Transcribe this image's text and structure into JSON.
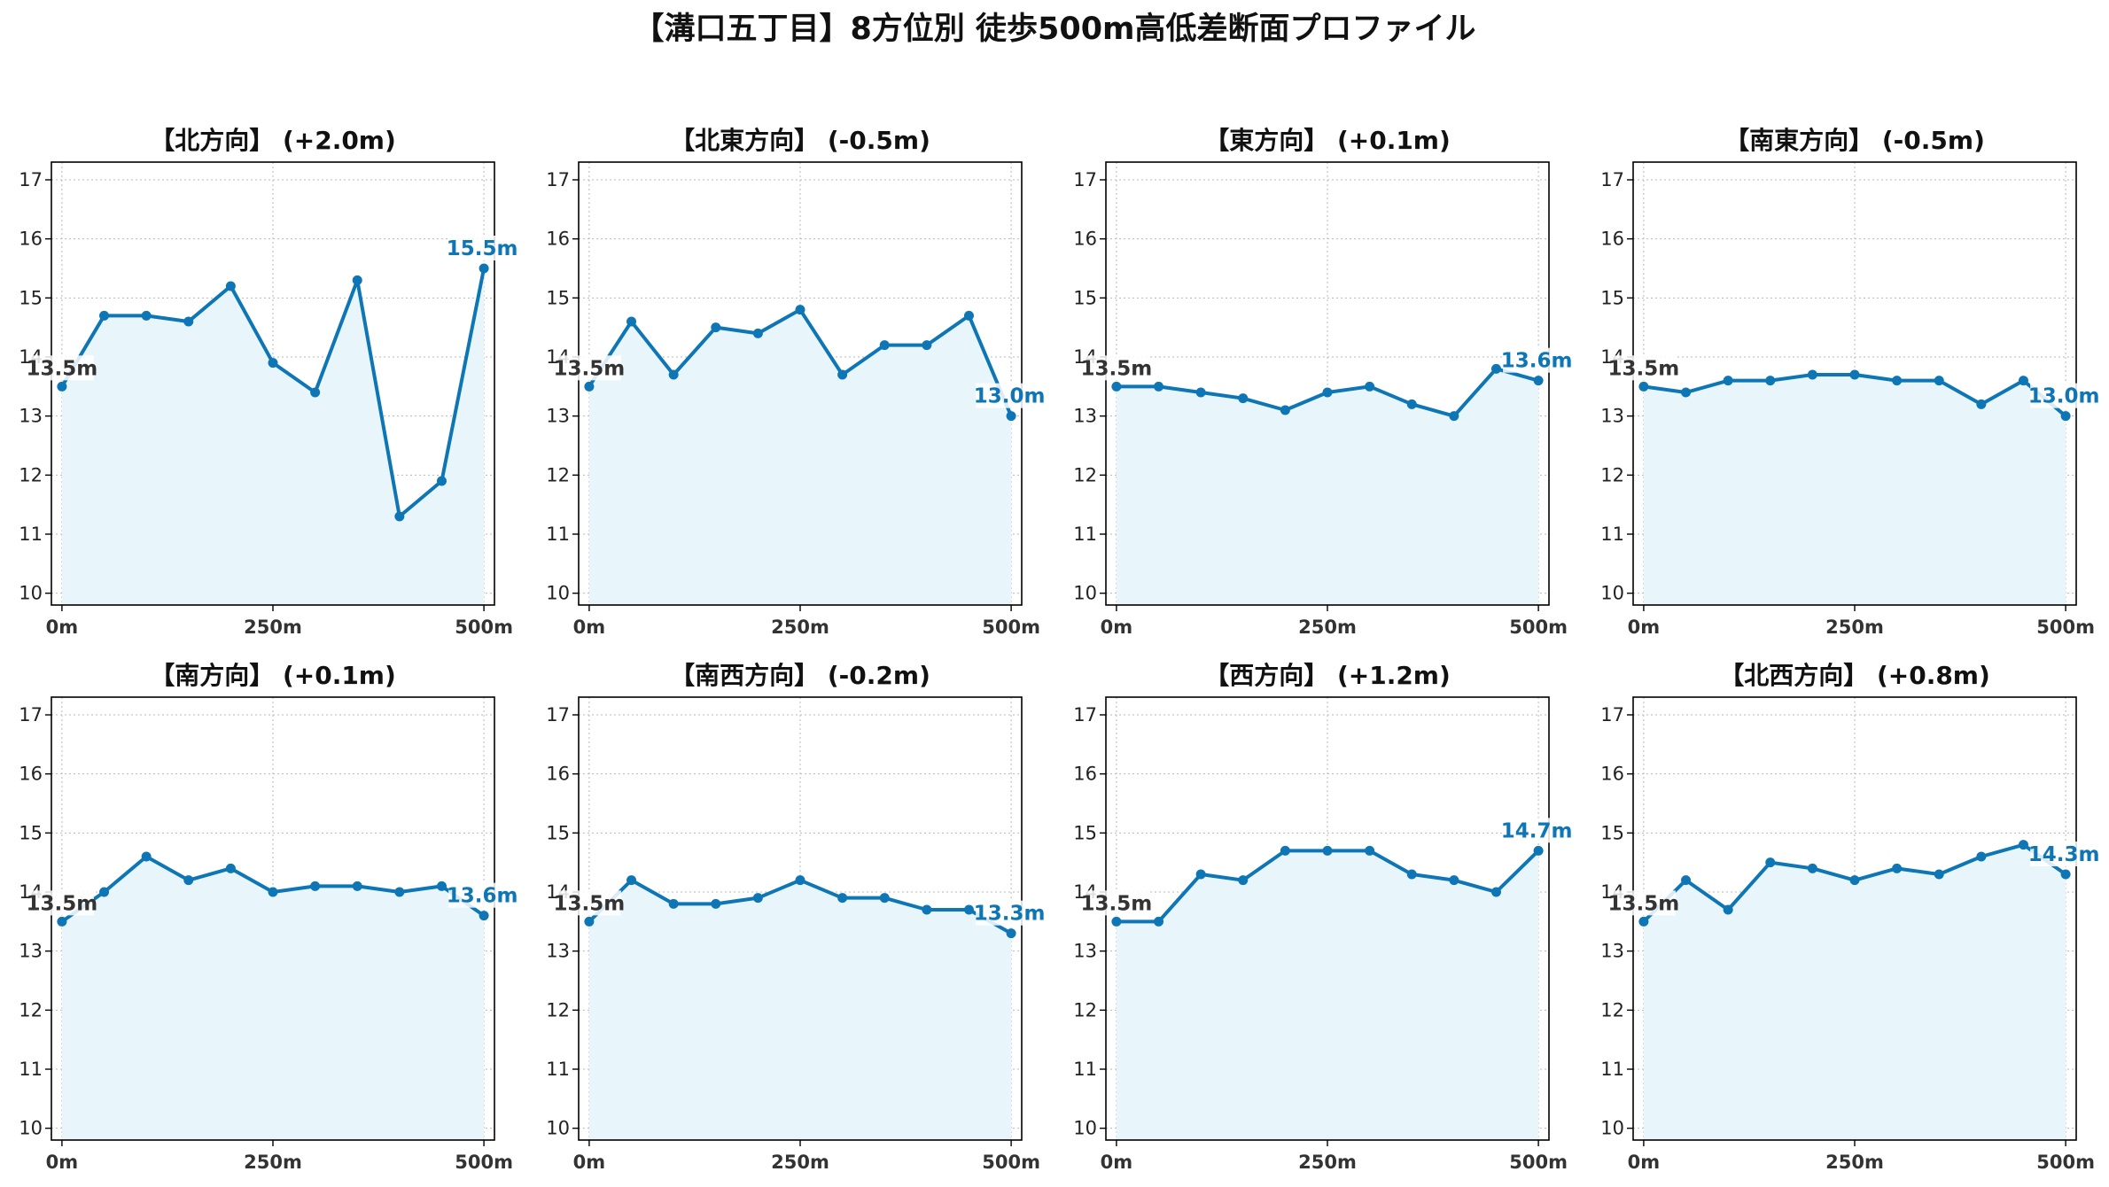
{
  "title": "【溝口五丁目】8方位別 徒歩500m高低差断面プロファイル",
  "colors": {
    "line": "#0e76b5",
    "fill": "#e8f6fc",
    "grid": "#b8b8b8",
    "start_label": "#333333",
    "end_label": "#0e76b5"
  },
  "chart_data": [
    {
      "type": "area",
      "title": "【北方向】 (+2.0m)",
      "x": [
        0,
        50,
        100,
        150,
        200,
        250,
        300,
        350,
        400,
        450,
        500
      ],
      "values": [
        13.5,
        14.7,
        14.7,
        14.6,
        15.2,
        13.9,
        13.4,
        15.3,
        11.3,
        11.9,
        15.5
      ],
      "start_label": "13.5m",
      "end_label": "15.5m",
      "xticks": [
        "0m",
        "250m",
        "500m"
      ],
      "yticks": [
        "10",
        "11",
        "12",
        "13",
        "14",
        "15",
        "16",
        "17"
      ],
      "ylim": [
        9.8,
        17.3
      ],
      "grid": true
    },
    {
      "type": "area",
      "title": "【北東方向】 (-0.5m)",
      "x": [
        0,
        50,
        100,
        150,
        200,
        250,
        300,
        350,
        400,
        450,
        500
      ],
      "values": [
        13.5,
        14.6,
        13.7,
        14.5,
        14.4,
        14.8,
        13.7,
        14.2,
        14.2,
        14.7,
        13.0
      ],
      "start_label": "13.5m",
      "end_label": "13.0m",
      "xticks": [
        "0m",
        "250m",
        "500m"
      ],
      "yticks": [
        "10",
        "11",
        "12",
        "13",
        "14",
        "15",
        "16",
        "17"
      ],
      "ylim": [
        9.8,
        17.3
      ],
      "grid": true
    },
    {
      "type": "area",
      "title": "【東方向】 (+0.1m)",
      "x": [
        0,
        50,
        100,
        150,
        200,
        250,
        300,
        350,
        400,
        450,
        500
      ],
      "values": [
        13.5,
        13.5,
        13.4,
        13.3,
        13.1,
        13.4,
        13.5,
        13.2,
        13.0,
        13.8,
        13.6
      ],
      "start_label": "13.5m",
      "end_label": "13.6m",
      "xticks": [
        "0m",
        "250m",
        "500m"
      ],
      "yticks": [
        "10",
        "11",
        "12",
        "13",
        "14",
        "15",
        "16",
        "17"
      ],
      "ylim": [
        9.8,
        17.3
      ],
      "grid": true
    },
    {
      "type": "area",
      "title": "【南東方向】 (-0.5m)",
      "x": [
        0,
        50,
        100,
        150,
        200,
        250,
        300,
        350,
        400,
        450,
        500
      ],
      "values": [
        13.5,
        13.4,
        13.6,
        13.6,
        13.7,
        13.7,
        13.6,
        13.6,
        13.2,
        13.6,
        13.0
      ],
      "start_label": "13.5m",
      "end_label": "13.0m",
      "xticks": [
        "0m",
        "250m",
        "500m"
      ],
      "yticks": [
        "10",
        "11",
        "12",
        "13",
        "14",
        "15",
        "16",
        "17"
      ],
      "ylim": [
        9.8,
        17.3
      ],
      "grid": true
    },
    {
      "type": "area",
      "title": "【南方向】 (+0.1m)",
      "x": [
        0,
        50,
        100,
        150,
        200,
        250,
        300,
        350,
        400,
        450,
        500
      ],
      "values": [
        13.5,
        14.0,
        14.6,
        14.2,
        14.4,
        14.0,
        14.1,
        14.1,
        14.0,
        14.1,
        13.6
      ],
      "start_label": "13.5m",
      "end_label": "13.6m",
      "xticks": [
        "0m",
        "250m",
        "500m"
      ],
      "yticks": [
        "10",
        "11",
        "12",
        "13",
        "14",
        "15",
        "16",
        "17"
      ],
      "ylim": [
        9.8,
        17.3
      ],
      "grid": true
    },
    {
      "type": "area",
      "title": "【南西方向】 (-0.2m)",
      "x": [
        0,
        50,
        100,
        150,
        200,
        250,
        300,
        350,
        400,
        450,
        500
      ],
      "values": [
        13.5,
        14.2,
        13.8,
        13.8,
        13.9,
        14.2,
        13.9,
        13.9,
        13.7,
        13.7,
        13.3
      ],
      "start_label": "13.5m",
      "end_label": "13.3m",
      "xticks": [
        "0m",
        "250m",
        "500m"
      ],
      "yticks": [
        "10",
        "11",
        "12",
        "13",
        "14",
        "15",
        "16",
        "17"
      ],
      "ylim": [
        9.8,
        17.3
      ],
      "grid": true
    },
    {
      "type": "area",
      "title": "【西方向】 (+1.2m)",
      "x": [
        0,
        50,
        100,
        150,
        200,
        250,
        300,
        350,
        400,
        450,
        500
      ],
      "values": [
        13.5,
        13.5,
        14.3,
        14.2,
        14.7,
        14.7,
        14.7,
        14.3,
        14.2,
        14.0,
        14.7
      ],
      "start_label": "13.5m",
      "end_label": "14.7m",
      "xticks": [
        "0m",
        "250m",
        "500m"
      ],
      "yticks": [
        "10",
        "11",
        "12",
        "13",
        "14",
        "15",
        "16",
        "17"
      ],
      "ylim": [
        9.8,
        17.3
      ],
      "grid": true
    },
    {
      "type": "area",
      "title": "【北西方向】 (+0.8m)",
      "x": [
        0,
        50,
        100,
        150,
        200,
        250,
        300,
        350,
        400,
        450,
        500
      ],
      "values": [
        13.5,
        14.2,
        13.7,
        14.5,
        14.4,
        14.2,
        14.4,
        14.3,
        14.6,
        14.8,
        14.3
      ],
      "start_label": "13.5m",
      "end_label": "14.3m",
      "xticks": [
        "0m",
        "250m",
        "500m"
      ],
      "yticks": [
        "10",
        "11",
        "12",
        "13",
        "14",
        "15",
        "16",
        "17"
      ],
      "ylim": [
        9.8,
        17.3
      ],
      "grid": true
    }
  ]
}
